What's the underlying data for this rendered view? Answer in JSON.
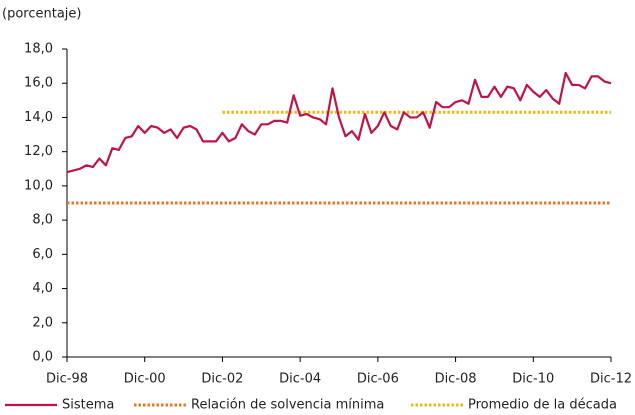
{
  "chart_data": {
    "type": "line",
    "y_label": "(porcentaje)",
    "categories": [
      "Dic-98",
      null,
      null,
      null,
      null,
      null,
      null,
      null,
      null,
      null,
      null,
      null,
      "Dic-00",
      null,
      null,
      null,
      null,
      null,
      null,
      null,
      null,
      null,
      null,
      null,
      "Dic-02",
      null,
      null,
      null,
      null,
      null,
      null,
      null,
      null,
      null,
      null,
      null,
      "Dic-04",
      null,
      null,
      null,
      null,
      null,
      null,
      null,
      null,
      null,
      null,
      null,
      "Dic-06",
      null,
      null,
      null,
      null,
      null,
      null,
      null,
      null,
      null,
      null,
      null,
      "Dic-08",
      null,
      null,
      null,
      null,
      null,
      null,
      null,
      null,
      null,
      null,
      null,
      "Dic-10",
      null,
      null,
      null,
      null,
      null,
      null,
      null,
      null,
      null,
      null,
      null,
      "Dic-12"
    ],
    "series": [
      {
        "name": "Sistema",
        "color": "#c0134a",
        "style": "solid",
        "values": [
          10.8,
          10.9,
          11.0,
          11.2,
          11.1,
          11.6,
          11.2,
          12.2,
          12.1,
          12.8,
          12.9,
          13.5,
          13.1,
          13.5,
          13.4,
          13.1,
          13.3,
          12.8,
          13.4,
          13.5,
          13.3,
          12.6,
          12.6,
          12.6,
          13.1,
          12.6,
          12.8,
          13.6,
          13.2,
          13.0,
          13.6,
          13.6,
          13.8,
          13.8,
          13.7,
          15.3,
          14.1,
          14.2,
          14.0,
          13.9,
          13.6,
          15.7,
          14.0,
          12.9,
          13.2,
          12.7,
          14.2,
          13.1,
          13.5,
          14.3,
          13.5,
          13.3,
          14.3,
          14.0,
          14.0,
          14.3,
          13.4,
          14.9,
          14.6,
          14.6,
          14.9,
          15.0,
          14.8,
          16.2,
          15.2,
          15.2,
          15.8,
          15.2,
          15.8,
          15.7,
          15.0,
          15.9,
          15.5,
          15.2,
          15.6,
          15.1,
          14.8,
          16.6,
          15.9,
          15.9,
          15.7,
          16.4,
          16.4,
          16.1,
          16.0
        ]
      },
      {
        "name": "Relación de solvencia mínima",
        "color": "#e87722",
        "style": "dotted",
        "values": [
          9,
          9,
          9,
          9,
          9,
          9,
          9,
          9,
          9,
          9,
          9,
          9,
          9,
          9,
          9,
          9,
          9,
          9,
          9,
          9,
          9,
          9,
          9,
          9,
          9,
          9,
          9,
          9,
          9,
          9,
          9,
          9,
          9,
          9,
          9,
          9,
          9,
          9,
          9,
          9,
          9,
          9,
          9,
          9,
          9,
          9,
          9,
          9,
          9,
          9,
          9,
          9,
          9,
          9,
          9,
          9,
          9,
          9,
          9,
          9,
          9,
          9,
          9,
          9,
          9,
          9,
          9,
          9,
          9,
          9,
          9,
          9,
          9,
          9,
          9,
          9,
          9,
          9,
          9,
          9,
          9,
          9,
          9,
          9,
          9
        ]
      },
      {
        "name": "Promedio de la década",
        "color": "#f2b70f",
        "style": "dotted",
        "values": [
          null,
          null,
          null,
          null,
          null,
          null,
          null,
          null,
          null,
          null,
          null,
          null,
          null,
          null,
          null,
          null,
          null,
          null,
          null,
          null,
          null,
          null,
          null,
          null,
          14.3,
          14.3,
          14.3,
          14.3,
          14.3,
          14.3,
          14.3,
          14.3,
          14.3,
          14.3,
          14.3,
          14.3,
          14.3,
          14.3,
          14.3,
          14.3,
          14.3,
          14.3,
          14.3,
          14.3,
          14.3,
          14.3,
          14.3,
          14.3,
          14.3,
          14.3,
          14.3,
          14.3,
          14.3,
          14.3,
          14.3,
          14.3,
          14.3,
          14.3,
          14.3,
          14.3,
          14.3,
          14.3,
          14.3,
          14.3,
          14.3,
          14.3,
          14.3,
          14.3,
          14.3,
          14.3,
          14.3,
          14.3,
          14.3,
          14.3,
          14.3,
          14.3,
          14.3,
          14.3,
          14.3,
          14.3,
          14.3,
          14.3,
          14.3,
          14.3,
          14.3
        ]
      }
    ],
    "ylim": [
      0,
      18
    ],
    "yticks": [
      {
        "value": 0,
        "label": "0,0"
      },
      {
        "value": 2,
        "label": "2,0"
      },
      {
        "value": 4,
        "label": "4,0"
      },
      {
        "value": 6,
        "label": "6,0"
      },
      {
        "value": 8,
        "label": "8,0"
      },
      {
        "value": 10,
        "label": "10,0"
      },
      {
        "value": 12,
        "label": "12,0"
      },
      {
        "value": 14,
        "label": "14,0"
      },
      {
        "value": 16,
        "label": "16,0"
      },
      {
        "value": 18,
        "label": "18,0"
      }
    ],
    "grid": false
  }
}
